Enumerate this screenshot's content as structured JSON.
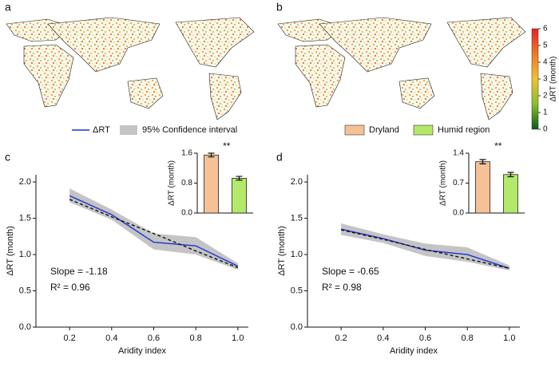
{
  "panel_labels": [
    "a",
    "b",
    "c",
    "d"
  ],
  "colorbar": {
    "label": "ΔRT (month)",
    "lim": [
      0,
      6
    ],
    "ticks": [
      0,
      1,
      2,
      3,
      4,
      5,
      6
    ],
    "colors": [
      "#0a5a1e",
      "#8bbf2a",
      "#f2c230",
      "#ee7a22",
      "#e8202a"
    ]
  },
  "chart_data": [
    {
      "type": "line",
      "x": [
        0.2,
        0.4,
        0.6,
        0.8,
        1.0
      ],
      "series": [
        {
          "name": "ΔRT",
          "color": "#1f2fd8",
          "values": [
            1.81,
            1.55,
            1.17,
            1.12,
            0.84
          ]
        }
      ],
      "band": {
        "name": "95% Confidence interval",
        "color": "#c4c4c4",
        "lower": [
          1.72,
          1.48,
          1.07,
          1.0,
          0.79
        ],
        "upper": [
          1.91,
          1.62,
          1.29,
          1.24,
          0.88
        ]
      },
      "fit_values": [
        1.76,
        1.52,
        1.29,
        1.05,
        0.82
      ],
      "fit_color": "#111111",
      "xlim": [
        0.04,
        1.05
      ],
      "ylim": [
        0,
        2.1
      ],
      "xticks": [
        0.2,
        0.4,
        0.6,
        0.8,
        {
          "value": 1,
          "label": "1.0"
        }
      ],
      "yticks": [
        {
          "value": 0,
          "label": "0.0"
        },
        0.5,
        {
          "value": 1,
          "label": "1.0"
        },
        1.5,
        {
          "value": 2,
          "label": "2.0"
        }
      ],
      "xlabel": "Aridity index",
      "ylabel": "ΔRT (month)",
      "annotations": [
        "Slope = -1.18",
        "R² = 0.96"
      ]
    },
    {
      "type": "bar",
      "categories": [
        "Dryland",
        "Humid region"
      ],
      "colors": [
        "#f6c196",
        "#b4e86a"
      ],
      "values": [
        1.55,
        0.93
      ],
      "errors": [
        0.05,
        0.05
      ],
      "ylim": [
        0,
        1.6
      ],
      "yticks": [
        {
          "value": 0,
          "label": "0.0"
        },
        0.8,
        1.6
      ],
      "ylabel": "ΔRT (month)",
      "annotation": "**"
    },
    {
      "type": "line",
      "x": [
        0.2,
        0.4,
        0.6,
        0.8,
        1.0
      ],
      "series": [
        {
          "color": "#1f2fd8",
          "values": [
            1.35,
            1.22,
            1.06,
            1.0,
            0.81
          ]
        }
      ],
      "band": {
        "color": "#c4c4c4",
        "lower": [
          1.27,
          1.16,
          0.98,
          0.9,
          0.78
        ],
        "upper": [
          1.43,
          1.28,
          1.15,
          1.1,
          0.85
        ]
      },
      "fit_values": [
        1.34,
        1.21,
        1.07,
        0.94,
        0.81
      ],
      "fit_color": "#111111",
      "xlim": [
        0.04,
        1.05
      ],
      "ylim": [
        0,
        2.1
      ],
      "xticks": [
        0.2,
        0.4,
        0.6,
        0.8,
        {
          "value": 1,
          "label": "1.0"
        }
      ],
      "yticks": [
        {
          "value": 0,
          "label": "0.0"
        },
        0.5,
        {
          "value": 1,
          "label": "1.0"
        },
        1.5,
        {
          "value": 2,
          "label": "2.0"
        }
      ],
      "xlabel": "Aridity index",
      "ylabel": "ΔRT (month)",
      "annotations": [
        "Slope = -0.65",
        "R² = 0.98"
      ]
    },
    {
      "type": "bar",
      "colors": [
        "#f6c196",
        "#b4e86a"
      ],
      "values": [
        1.2,
        0.9
      ],
      "errors": [
        0.05,
        0.05
      ],
      "ylim": [
        0,
        1.4
      ],
      "yticks": [
        {
          "value": 0,
          "label": "0.0"
        },
        0.7,
        1.4
      ],
      "ylabel": "ΔRT (month)",
      "annotation": "**"
    }
  ]
}
